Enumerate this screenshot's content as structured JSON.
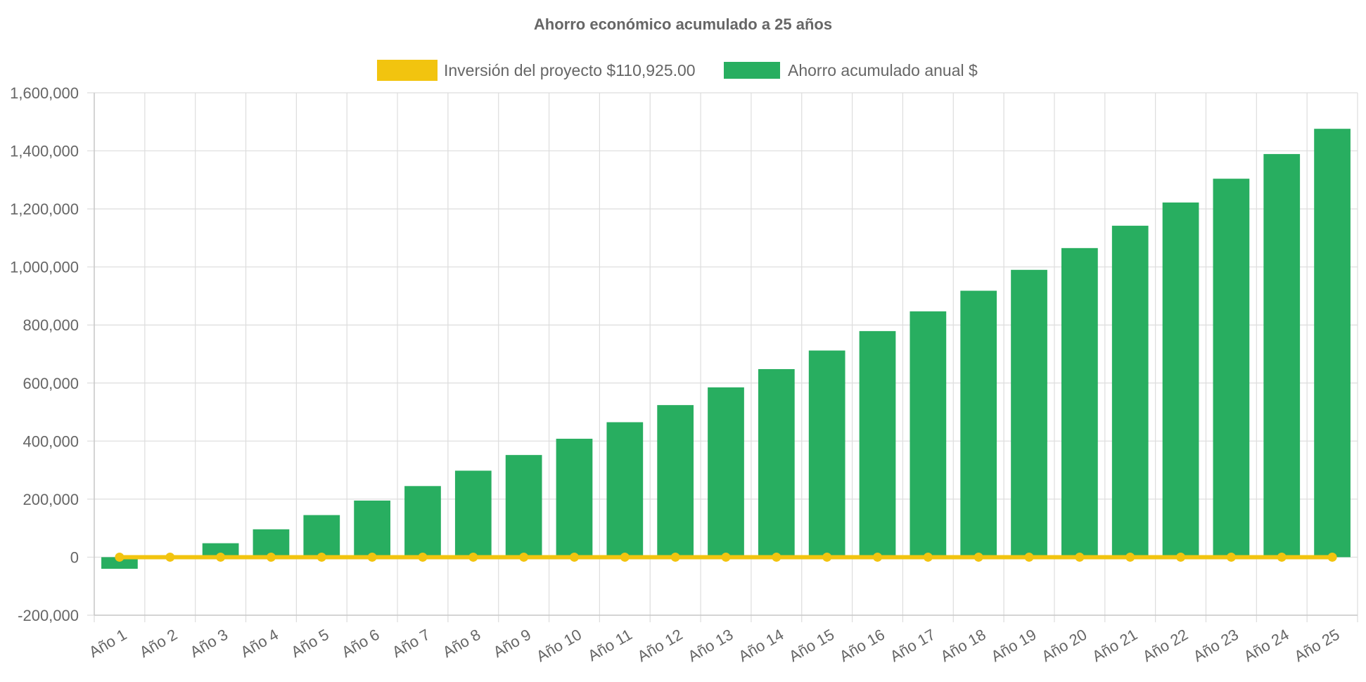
{
  "chart_data": {
    "type": "bar",
    "title": "Ahorro económico acumulado a 25 años",
    "categories": [
      "Año 1",
      "Año 2",
      "Año 3",
      "Año 4",
      "Año 5",
      "Año 6",
      "Año 7",
      "Año 8",
      "Año 9",
      "Año 10",
      "Año 11",
      "Año 12",
      "Año 13",
      "Año 14",
      "Año 15",
      "Año 16",
      "Año 17",
      "Año 18",
      "Año 19",
      "Año 20",
      "Año 21",
      "Año 22",
      "Año 23",
      "Año 24",
      "Año 25"
    ],
    "series": [
      {
        "name": "Inversión del proyecto $110,925.00",
        "type": "line",
        "color": "#f2c40f",
        "values": [
          0,
          0,
          0,
          0,
          0,
          0,
          0,
          0,
          0,
          0,
          0,
          0,
          0,
          0,
          0,
          0,
          0,
          0,
          0,
          0,
          0,
          0,
          0,
          0,
          0
        ]
      },
      {
        "name": "Ahorro acumulado anual $",
        "type": "bar",
        "color": "#28ae60",
        "values": [
          -40000,
          0,
          48000,
          96000,
          145000,
          195000,
          245000,
          298000,
          352000,
          408000,
          465000,
          524000,
          585000,
          648000,
          712000,
          779000,
          847000,
          918000,
          990000,
          1065000,
          1142000,
          1222000,
          1304000,
          1389000,
          1476000
        ]
      }
    ],
    "ylim": [
      -200000,
      1600000
    ],
    "yticks": [
      -200000,
      0,
      200000,
      400000,
      600000,
      800000,
      1000000,
      1200000,
      1400000,
      1600000
    ],
    "ytick_labels": [
      "-200,000",
      "0",
      "200,000",
      "400,000",
      "600,000",
      "800,000",
      "1,000,000",
      "1,200,000",
      "1,400,000",
      "1,600,000"
    ],
    "grid": true,
    "legend_position": "top-center",
    "xlabel": "",
    "ylabel": ""
  }
}
